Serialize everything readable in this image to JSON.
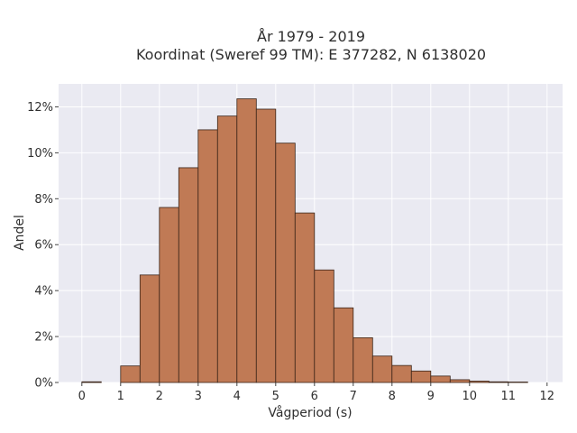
{
  "chart_data": {
    "type": "bar",
    "title": "År 1979 - 2019",
    "subtitle": "Koordinat (Sweref 99 TM): E 377282, N 6138020",
    "xlabel": "Vågperiod (s)",
    "ylabel": "Andel",
    "xlim": [
      -0.6,
      12.4
    ],
    "ylim": [
      0,
      13
    ],
    "x_ticks": [
      0,
      1,
      2,
      3,
      4,
      5,
      6,
      7,
      8,
      9,
      10,
      11,
      12
    ],
    "y_ticks": [
      0,
      2,
      4,
      6,
      8,
      10,
      12
    ],
    "y_tick_labels": [
      "0%",
      "2%",
      "4%",
      "6%",
      "8%",
      "10%",
      "12%"
    ],
    "grid": true,
    "bin_width": 0.5,
    "bars": [
      {
        "x0": 0.0,
        "value": 0.03
      },
      {
        "x0": 1.0,
        "value": 0.72
      },
      {
        "x0": 1.5,
        "value": 4.68
      },
      {
        "x0": 2.0,
        "value": 7.62
      },
      {
        "x0": 2.5,
        "value": 9.35
      },
      {
        "x0": 3.0,
        "value": 11.0
      },
      {
        "x0": 3.5,
        "value": 11.6
      },
      {
        "x0": 4.0,
        "value": 12.35
      },
      {
        "x0": 4.5,
        "value": 11.9
      },
      {
        "x0": 5.0,
        "value": 10.42
      },
      {
        "x0": 5.5,
        "value": 7.38
      },
      {
        "x0": 6.0,
        "value": 4.9
      },
      {
        "x0": 6.5,
        "value": 3.25
      },
      {
        "x0": 7.0,
        "value": 1.95
      },
      {
        "x0": 7.5,
        "value": 1.15
      },
      {
        "x0": 8.0,
        "value": 0.74
      },
      {
        "x0": 8.5,
        "value": 0.5
      },
      {
        "x0": 9.0,
        "value": 0.28
      },
      {
        "x0": 9.5,
        "value": 0.12
      },
      {
        "x0": 10.0,
        "value": 0.06
      },
      {
        "x0": 10.5,
        "value": 0.03
      },
      {
        "x0": 11.0,
        "value": 0.02
      }
    ],
    "colors": {
      "bar_fill": "#c07a55",
      "bar_edge": "#3a2418",
      "plot_bg": "#eaeaf2",
      "grid": "#ffffff"
    }
  }
}
